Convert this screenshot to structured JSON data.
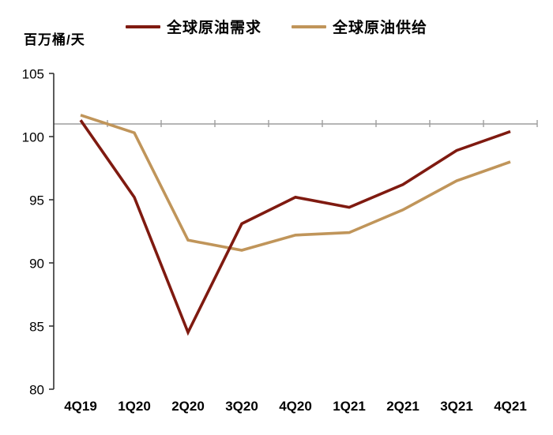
{
  "unit_label": "百万桶/天",
  "legend": {
    "items": [
      {
        "label": "全球原油需求",
        "color": "#7F1A10"
      },
      {
        "label": "全球原油供给",
        "color": "#C0955A"
      }
    ]
  },
  "chart_data": {
    "type": "line",
    "title": "",
    "xlabel": "",
    "ylabel": "百万桶/天",
    "categories": [
      "4Q19",
      "1Q20",
      "2Q20",
      "3Q20",
      "4Q20",
      "1Q21",
      "2Q21",
      "3Q21",
      "4Q21"
    ],
    "series": [
      {
        "name": "全球原油需求",
        "color": "#7F1A10",
        "values": [
          101.3,
          95.2,
          84.5,
          93.1,
          95.2,
          94.4,
          96.2,
          98.9,
          100.4
        ]
      },
      {
        "name": "全球原油供给",
        "color": "#C0955A",
        "values": [
          101.7,
          100.3,
          91.8,
          91.0,
          92.2,
          92.4,
          94.2,
          96.5,
          98.0
        ]
      }
    ],
    "ylim": [
      80,
      105
    ],
    "ytick_step": 5,
    "ytick_labels": [
      "80",
      "85",
      "90",
      "95",
      "100",
      "105"
    ],
    "reference_line": {
      "value": 101,
      "color": "#9E9E9E"
    },
    "axis_color": "#333333",
    "grid": false,
    "legend_position": "top"
  }
}
